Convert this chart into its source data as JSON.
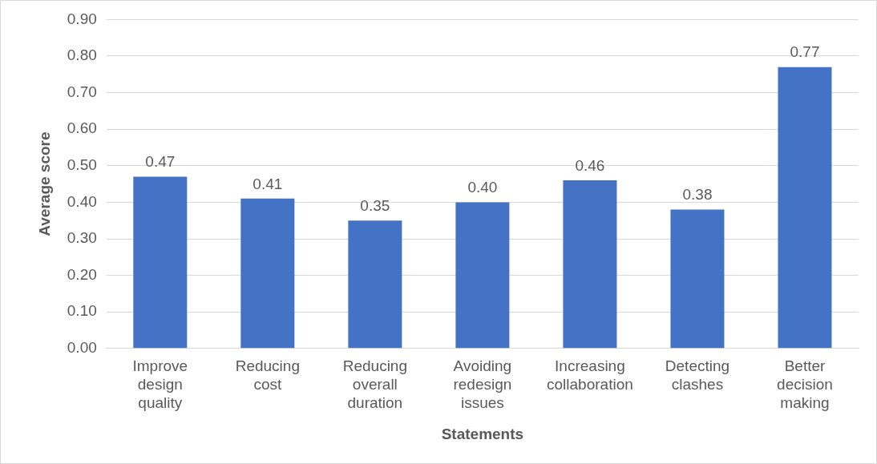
{
  "chart_data": {
    "type": "bar",
    "xlabel": "Statements",
    "ylabel": "Average score",
    "categories": [
      "Improve design quality",
      "Reducing cost",
      "Reducing overall duration",
      "Avoiding redesign issues",
      "Increasing collaboration",
      "Detecting clashes",
      "Better decision making"
    ],
    "values": [
      0.47,
      0.41,
      0.35,
      0.4,
      0.46,
      0.38,
      0.77
    ],
    "value_labels": [
      "0.47",
      "0.41",
      "0.35",
      "0.40",
      "0.46",
      "0.38",
      "0.77"
    ],
    "color": "#4472c4",
    "ylim": [
      0,
      0.9
    ],
    "yticks": [
      {
        "value": 0,
        "label": "0.00"
      },
      {
        "value": 0.1,
        "label": "0.10"
      },
      {
        "value": 0.2,
        "label": "0.20"
      },
      {
        "value": 0.3,
        "label": "0.30"
      },
      {
        "value": 0.4,
        "label": "0.40"
      },
      {
        "value": 0.5,
        "label": "0.50"
      },
      {
        "value": 0.6,
        "label": "0.60"
      },
      {
        "value": 0.7,
        "label": "0.70"
      },
      {
        "value": 0.8,
        "label": "0.80"
      },
      {
        "value": 0.9,
        "label": "0.90"
      }
    ],
    "grid": "y",
    "legend": false
  }
}
